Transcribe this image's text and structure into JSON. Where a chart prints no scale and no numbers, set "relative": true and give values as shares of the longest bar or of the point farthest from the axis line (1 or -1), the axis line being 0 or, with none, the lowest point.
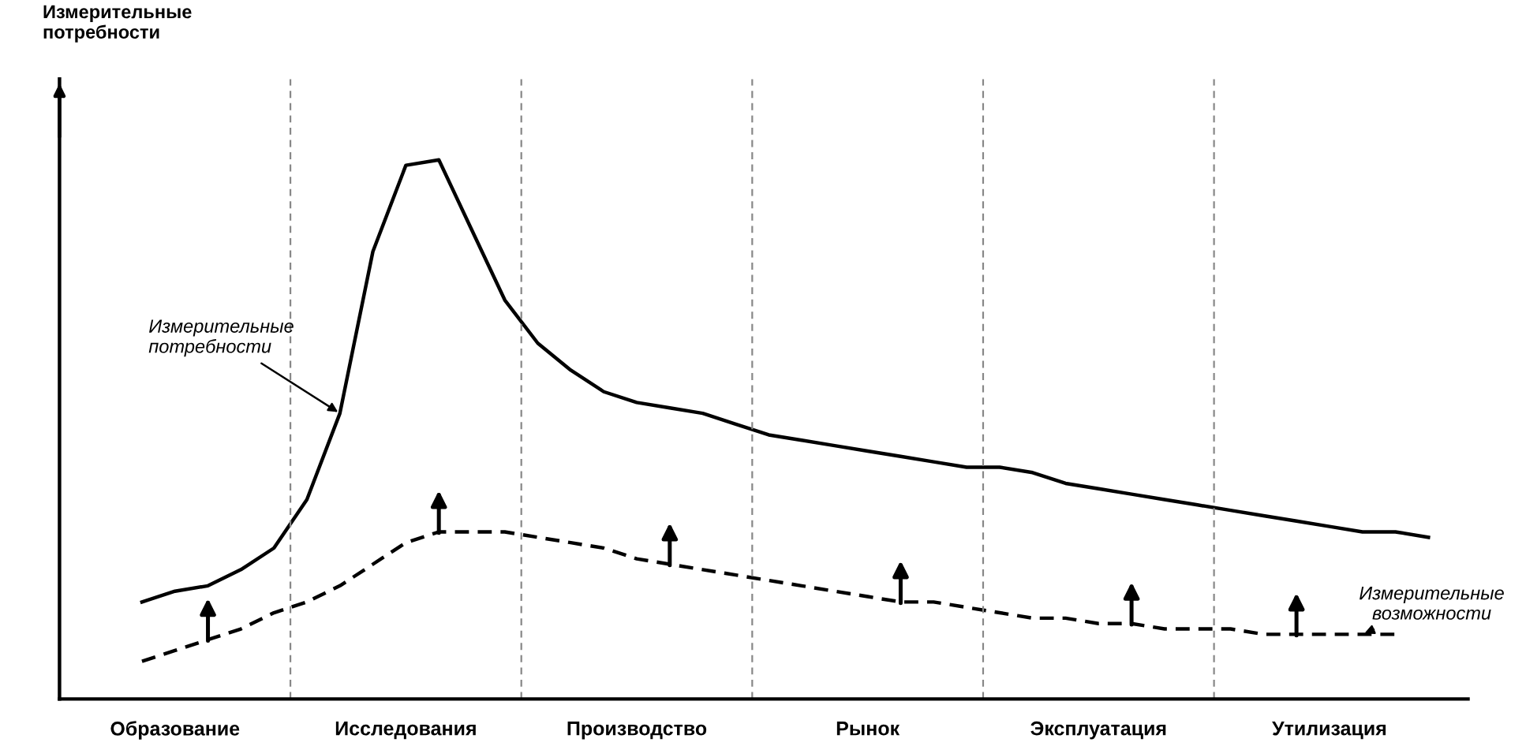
{
  "chart_data": {
    "type": "line",
    "relative": true,
    "categories": [
      null,
      null,
      null,
      "Образование",
      null,
      null,
      null,
      null,
      null,
      null,
      "Исследования",
      null,
      null,
      null,
      null,
      null,
      null,
      "Производство",
      null,
      null,
      null,
      null,
      null,
      null,
      "Рынок",
      null,
      null,
      null,
      null,
      null,
      null,
      "Эксплуатация",
      null,
      null,
      null,
      null,
      null,
      null,
      "Утилизация",
      null,
      null,
      null
    ],
    "series": [
      {
        "color": "#000000",
        "line_style": "solid",
        "values": [
          null,
          null,
          0.18,
          0.2,
          0.21,
          0.24,
          0.28,
          0.37,
          0.53,
          0.83,
          0.99,
          1.0,
          0.87,
          0.74,
          0.66,
          0.61,
          0.57,
          0.55,
          0.54,
          0.53,
          0.51,
          0.49,
          0.48,
          0.47,
          0.46,
          0.45,
          0.44,
          0.43,
          0.43,
          0.42,
          0.4,
          0.39,
          0.38,
          0.37,
          0.36,
          0.35,
          0.34,
          0.33,
          0.32,
          0.31,
          0.31,
          0.3
        ]
      },
      {
        "color": "#000000",
        "line_style": "dashed",
        "values": [
          null,
          null,
          0.07,
          0.09,
          0.11,
          0.13,
          0.16,
          0.18,
          0.21,
          0.25,
          0.29,
          0.31,
          0.31,
          0.31,
          0.3,
          0.29,
          0.28,
          0.26,
          0.25,
          0.24,
          0.23,
          0.22,
          0.21,
          0.2,
          0.19,
          0.18,
          0.18,
          0.17,
          0.16,
          0.15,
          0.15,
          0.14,
          0.14,
          0.13,
          0.13,
          0.13,
          0.12,
          0.12,
          0.12,
          0.12,
          0.12,
          null
        ]
      }
    ],
    "annotations": [
      "Измерительные\nпотребности",
      "Измерительные\nпотребности",
      "Измерительные\nвозможности"
    ],
    "grid": false,
    "legend": false
  }
}
